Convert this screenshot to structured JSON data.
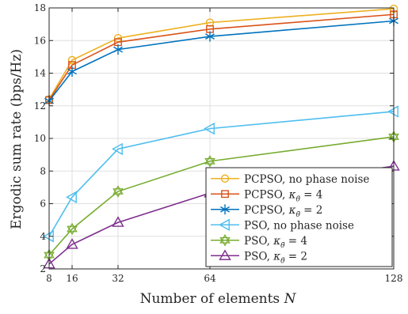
{
  "chart_data": {
    "type": "line",
    "title": "",
    "xlabel": "Number of elements N",
    "ylabel": "Ergodic sum rate (bps/Hz)",
    "xlim": [
      8,
      128
    ],
    "ylim": [
      2,
      18
    ],
    "x": [
      8,
      16,
      32,
      64,
      128
    ],
    "x_ticks": [
      8,
      16,
      32,
      64,
      128
    ],
    "y_ticks": [
      2,
      4,
      6,
      8,
      10,
      12,
      14,
      16,
      18
    ],
    "grid": true,
    "legend_position": "bottom-right",
    "series": [
      {
        "name": "PCPSO, no phase noise",
        "values": [
          12.4,
          14.8,
          16.15,
          17.1,
          17.95
        ],
        "color": "#EDB120",
        "marker": "circle"
      },
      {
        "name": "PCPSO, κθ̃ = 4",
        "values": [
          12.35,
          14.5,
          15.9,
          16.7,
          17.6
        ],
        "color": "#D95319",
        "marker": "square"
      },
      {
        "name": "PCPSO, κθ̃ = 2",
        "values": [
          12.3,
          14.1,
          15.45,
          16.25,
          17.2
        ],
        "color": "#0072BD",
        "marker": "asterisk"
      },
      {
        "name": "PSO, no phase noise",
        "values": [
          4.0,
          6.4,
          9.35,
          10.6,
          11.65
        ],
        "color": "#4DBEEE",
        "marker": "triangle-left"
      },
      {
        "name": "PSO, κθ̃ = 4",
        "values": [
          2.85,
          4.45,
          6.75,
          8.6,
          10.1
        ],
        "color": "#77AC30",
        "marker": "hexagram"
      },
      {
        "name": "PSO, κθ̃ = 2",
        "values": [
          2.3,
          3.5,
          4.85,
          6.65,
          8.3
        ],
        "color": "#7E2F8E",
        "marker": "triangle-up"
      }
    ]
  }
}
